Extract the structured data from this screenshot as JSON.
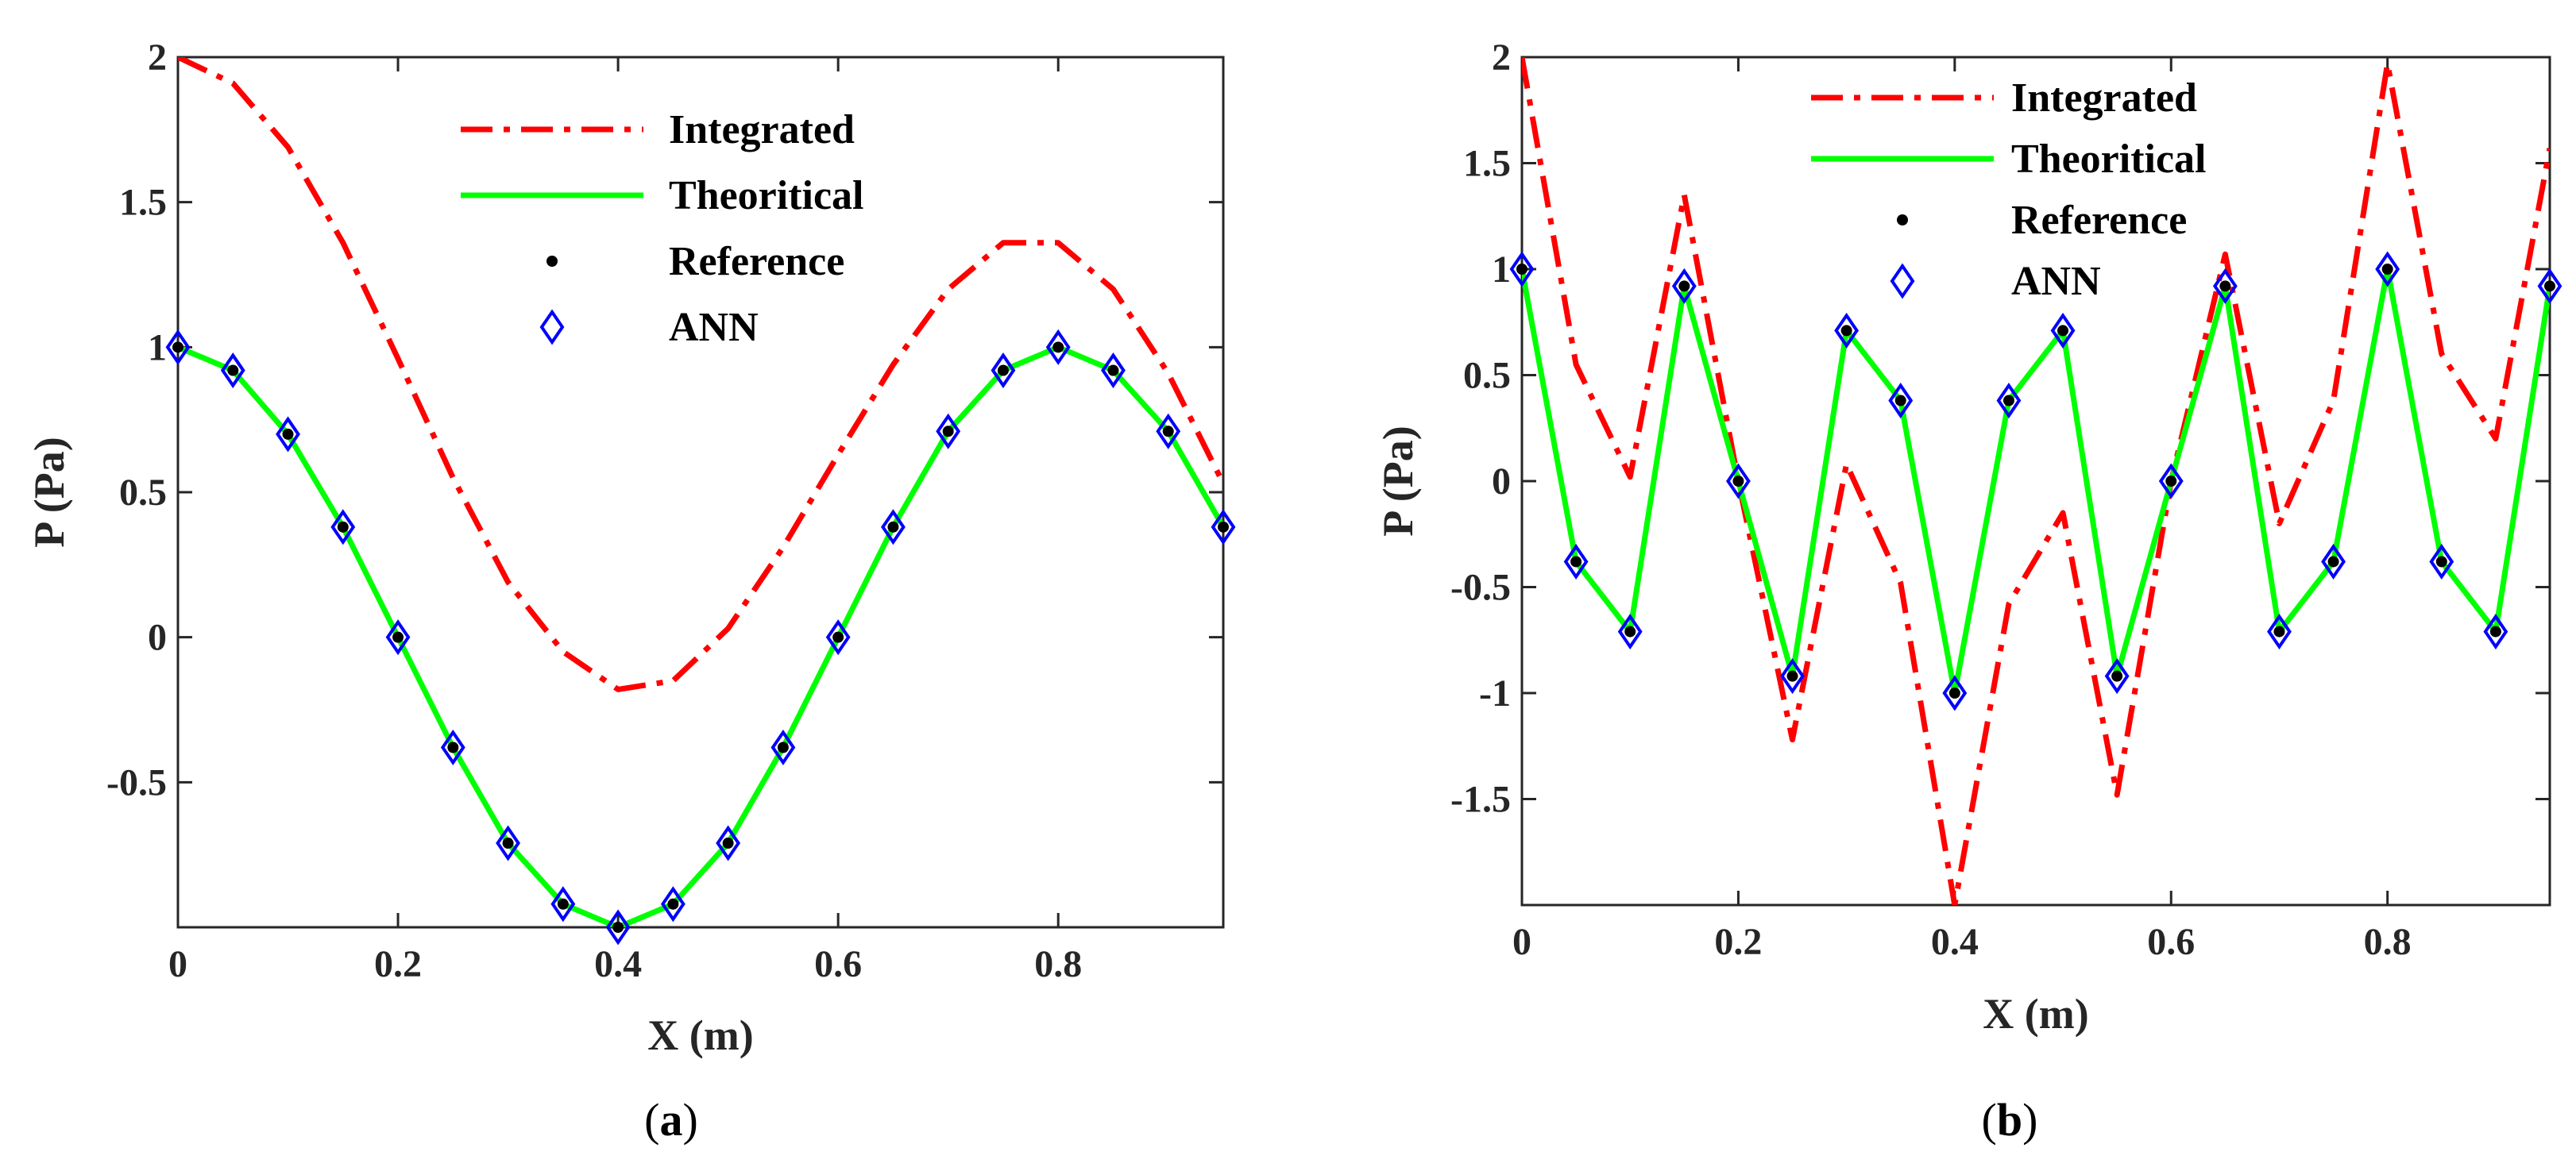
{
  "chart_data": [
    {
      "type": "line",
      "panel_label": "(a)",
      "caption_open": "(",
      "caption_letter": "a",
      "caption_close": ")",
      "xlabel": "X (m)",
      "ylabel": "P (Pa)",
      "xlim": [
        0,
        0.95
      ],
      "ylim": [
        -1,
        2
      ],
      "xticks": [
        0,
        0.2,
        0.4,
        0.6,
        0.8
      ],
      "xtick_labels": [
        "0",
        "0.2",
        "0.4",
        "0.6",
        "0.8"
      ],
      "yticks": [
        -0.5,
        0,
        0.5,
        1,
        1.5,
        2
      ],
      "ytick_labels": [
        "-0.5",
        "0",
        "0.5",
        "1",
        "1.5",
        "2"
      ],
      "legend_position": "top-right",
      "x": [
        0,
        0.05,
        0.1,
        0.15,
        0.2,
        0.25,
        0.3,
        0.35,
        0.4,
        0.45,
        0.5,
        0.55,
        0.6,
        0.65,
        0.7,
        0.75,
        0.8,
        0.85,
        0.9,
        0.95
      ],
      "series": [
        {
          "name": "Integrated",
          "style": "dashdot",
          "color": "#ff0000",
          "values": [
            2.0,
            1.91,
            1.69,
            1.36,
            0.96,
            0.55,
            0.19,
            -0.05,
            -0.18,
            -0.15,
            0.03,
            0.31,
            0.63,
            0.94,
            1.2,
            1.36,
            1.36,
            1.2,
            0.91,
            0.53
          ]
        },
        {
          "name": "Theoritical",
          "style": "solid",
          "color": "#00ff00",
          "values": [
            1.0,
            0.92,
            0.7,
            0.38,
            0.0,
            -0.38,
            -0.71,
            -0.92,
            -1.0,
            -0.92,
            -0.71,
            -0.38,
            0.0,
            0.38,
            0.71,
            0.92,
            1.0,
            0.92,
            0.71,
            0.38
          ]
        },
        {
          "name": "Reference",
          "style": "dot",
          "color": "#000000",
          "values": [
            1.0,
            0.92,
            0.7,
            0.38,
            0.0,
            -0.38,
            -0.71,
            -0.92,
            -1.0,
            -0.92,
            -0.71,
            -0.38,
            0.0,
            0.38,
            0.71,
            0.92,
            1.0,
            0.92,
            0.71,
            0.38
          ]
        },
        {
          "name": "ANN",
          "style": "diamond",
          "color": "#0000ff",
          "values": [
            1.0,
            0.92,
            0.7,
            0.38,
            0.0,
            -0.38,
            -0.71,
            -0.92,
            -1.0,
            -0.92,
            -0.71,
            -0.38,
            0.0,
            0.38,
            0.71,
            0.92,
            1.0,
            0.92,
            0.71,
            0.38
          ]
        }
      ]
    },
    {
      "type": "line",
      "panel_label": "(b)",
      "caption_open": "(",
      "caption_letter": "b",
      "caption_close": ")",
      "xlabel": "X (m)",
      "ylabel": "P (Pa)",
      "xlim": [
        0,
        0.95
      ],
      "ylim": [
        -2,
        2
      ],
      "xticks": [
        0,
        0.2,
        0.4,
        0.6,
        0.8
      ],
      "xtick_labels": [
        "0",
        "0.2",
        "0.4",
        "0.6",
        "0.8"
      ],
      "yticks": [
        -1.5,
        -1,
        -0.5,
        0,
        0.5,
        1,
        1.5,
        2
      ],
      "ytick_labels": [
        "-1.5",
        "-1",
        "-0.5",
        "0",
        "0.5",
        "1",
        "1.5",
        "2"
      ],
      "legend_position": "top-right",
      "x": [
        0,
        0.05,
        0.1,
        0.15,
        0.2,
        0.25,
        0.3,
        0.35,
        0.4,
        0.45,
        0.5,
        0.55,
        0.6,
        0.65,
        0.7,
        0.75,
        0.8,
        0.85,
        0.9,
        0.95
      ],
      "series": [
        {
          "name": "Integrated",
          "style": "dashdot",
          "color": "#ff0000",
          "values": [
            2.0,
            0.55,
            0.02,
            1.35,
            0.0,
            -1.22,
            0.08,
            -0.48,
            -2.0,
            -0.58,
            -0.15,
            -1.48,
            0.0,
            1.07,
            -0.2,
            0.38,
            1.97,
            0.6,
            0.2,
            1.57
          ]
        },
        {
          "name": "Theoritical",
          "style": "solid",
          "color": "#00ff00",
          "values": [
            1.0,
            -0.38,
            -0.71,
            0.92,
            0.0,
            -0.92,
            0.71,
            0.38,
            -1.0,
            0.38,
            0.71,
            -0.92,
            0.0,
            0.92,
            -0.71,
            -0.38,
            1.0,
            -0.38,
            -0.71,
            0.92
          ]
        },
        {
          "name": "Reference",
          "style": "dot",
          "color": "#000000",
          "values": [
            1.0,
            -0.38,
            -0.71,
            0.92,
            0.0,
            -0.92,
            0.71,
            0.38,
            -1.0,
            0.38,
            0.71,
            -0.92,
            0.0,
            0.92,
            -0.71,
            -0.38,
            1.0,
            -0.38,
            -0.71,
            0.92
          ]
        },
        {
          "name": "ANN",
          "style": "diamond",
          "color": "#0000ff",
          "values": [
            1.0,
            -0.38,
            -0.71,
            0.92,
            0.0,
            -0.92,
            0.71,
            0.38,
            -1.0,
            0.38,
            0.71,
            -0.92,
            0.0,
            0.92,
            -0.71,
            -0.38,
            1.0,
            -0.38,
            -0.71,
            0.92
          ]
        }
      ]
    }
  ]
}
